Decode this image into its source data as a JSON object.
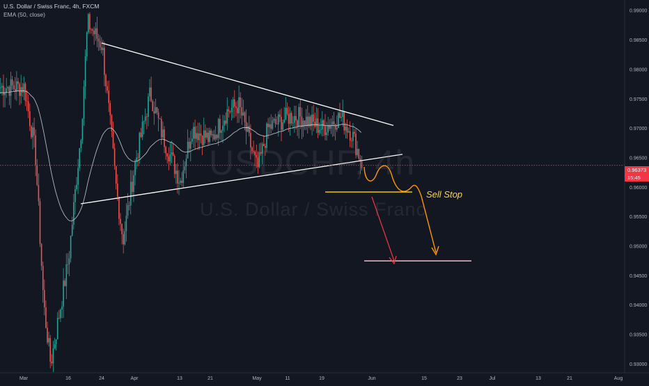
{
  "header": {
    "title": "U.S. Dollar / Swiss Franc, 4h, FXCM",
    "indicator": "EMA (50, close)"
  },
  "watermark": {
    "symbol": "USDCHF, 4h",
    "name": "U.S. Dollar / Swiss Franc"
  },
  "current_price": {
    "value": "0.96373",
    "countdown": "15:45",
    "color": "#f23645"
  },
  "annotation": {
    "sell_stop_label": "Sell Stop"
  },
  "colors": {
    "background": "#131722",
    "up_candle": "#26a69a",
    "down_candle": "#ef5350",
    "ema": "#d1d4dc",
    "trendline": "#ffffff",
    "sell_stop_line": "#ffd600",
    "projection_orange": "#ff9800",
    "projection_red": "#f23645"
  },
  "chart_data": {
    "type": "candlestick",
    "symbol": "USDCHF",
    "timeframe": "4h",
    "x_tick_labels": [
      "Mar",
      "16",
      "24",
      "Apr",
      "13",
      "21",
      "May",
      "11",
      "19",
      "Jun",
      "15",
      "23",
      "Jul",
      "13",
      "21",
      "Aug"
    ],
    "y_tick_labels": [
      "0.99000",
      "0.98500",
      "0.98000",
      "0.97500",
      "0.97000",
      "0.96500",
      "0.96000",
      "0.95500",
      "0.95000",
      "0.94500",
      "0.94000",
      "0.93500",
      "0.93000"
    ],
    "ylim": [
      0.9285,
      0.9918
    ],
    "grid": false,
    "price_anchors": [
      {
        "x": "Mar",
        "price": 0.977
      },
      {
        "x": "Mar 5",
        "price": 0.966
      },
      {
        "x": "Mar 9",
        "price": 0.94
      },
      {
        "x": "Mar 12",
        "price": 0.93
      },
      {
        "x": "16",
        "price": 0.948
      },
      {
        "x": "Mar 19",
        "price": 0.97
      },
      {
        "x": "Mar 20",
        "price": 0.988
      },
      {
        "x": "24",
        "price": 0.984
      },
      {
        "x": "Mar 26",
        "price": 0.97
      },
      {
        "x": "Mar 28",
        "price": 0.96
      },
      {
        "x": "Mar 30",
        "price": 0.951
      },
      {
        "x": "Apr",
        "price": 0.964
      },
      {
        "x": "Apr 5",
        "price": 0.976
      },
      {
        "x": "Apr 8",
        "price": 0.969
      },
      {
        "x": "13",
        "price": 0.961
      },
      {
        "x": "Apr 16",
        "price": 0.97
      },
      {
        "x": "21",
        "price": 0.968
      },
      {
        "x": "Apr 23",
        "price": 0.973
      },
      {
        "x": "Apr 27",
        "price": 0.974
      },
      {
        "x": "May",
        "price": 0.963
      },
      {
        "x": "May 5",
        "price": 0.97
      },
      {
        "x": "11",
        "price": 0.972
      },
      {
        "x": "May 14",
        "price": 0.972
      },
      {
        "x": "19",
        "price": 0.97
      },
      {
        "x": "May 22",
        "price": 0.972
      },
      {
        "x": "May 26",
        "price": 0.969
      },
      {
        "x": "May 28",
        "price": 0.9637
      }
    ],
    "series": [
      {
        "name": "EMA (50, close)",
        "type": "line"
      }
    ],
    "drawings": {
      "triangle_upper": {
        "from": {
          "x": "24",
          "price": 0.9845
        },
        "to": {
          "x": "Jun 4",
          "price": 0.9705
        }
      },
      "triangle_lower": {
        "from": {
          "x": "Mar 19",
          "price": 0.9572
        },
        "to": {
          "x": "Jun 5",
          "price": 0.9656
        }
      },
      "sell_stop_level": 0.9592,
      "target_level": 0.9475,
      "projection_path": "wavy descent from current price to below sell stop, ending near 0.9490",
      "direct_arrow": "from sell stop down to target level"
    },
    "last_price": 0.96373
  }
}
